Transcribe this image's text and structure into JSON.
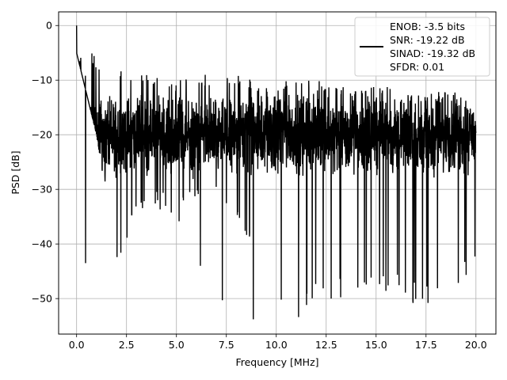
{
  "chart_data": {
    "type": "line",
    "xlabel": "Frequency [MHz]",
    "ylabel": "PSD [dB]",
    "xlim": [
      -0.9,
      21.0
    ],
    "ylim": [
      -56.5,
      2.5
    ],
    "x_ticks": [
      0.0,
      2.5,
      5.0,
      7.5,
      10.0,
      12.5,
      15.0,
      17.5,
      20.0
    ],
    "x_tick_labels": [
      "0.0",
      "2.5",
      "5.0",
      "7.5",
      "10.0",
      "12.5",
      "15.0",
      "17.5",
      "20.0"
    ],
    "y_ticks": [
      0,
      -10,
      -20,
      -30,
      -40,
      -50
    ],
    "y_tick_labels": [
      "0",
      "−10",
      "−20",
      "−30",
      "−40",
      "−50"
    ],
    "grid": true,
    "legend_placement": "top-right",
    "line_color": "#000000",
    "series": [
      {
        "legend_lines": [
          "ENOB: -3.5 bits",
          "SNR: -19.22 dB",
          "SINAD: -19.32 dB",
          "SFDR: 0.01"
        ],
        "x_start": 0.0,
        "x_end": 20.0,
        "envelope_min": [
          -5,
          -20,
          -43.5,
          -35,
          -33,
          -37,
          -31,
          -33,
          -36,
          -44,
          -50,
          -54,
          -50,
          -50,
          -49,
          -50,
          -49,
          -51,
          -51,
          -50,
          -42
        ],
        "envelope_max": [
          0,
          -6,
          -8,
          -9,
          -9,
          -10,
          -9,
          -9,
          -9,
          -10,
          -11,
          -9,
          -10,
          -11,
          -11,
          -11,
          -11,
          -12,
          -12,
          -12,
          -15
        ],
        "typical_range": [
          -28,
          -12
        ],
        "marked_points": [
          {
            "x": 0.0,
            "y": 0.0
          },
          {
            "x": 0.45,
            "y": -43.5
          },
          {
            "x": 6.2,
            "y": -44.0
          },
          {
            "x": 7.3,
            "y": -50.3
          },
          {
            "x": 8.85,
            "y": -53.8
          },
          {
            "x": 10.25,
            "y": -50.2
          },
          {
            "x": 12.75,
            "y": -50.0
          },
          {
            "x": 16.85,
            "y": -50.8
          },
          {
            "x": 17.6,
            "y": -50.8
          },
          {
            "x": 19.95,
            "y": -42.3
          }
        ]
      }
    ]
  }
}
